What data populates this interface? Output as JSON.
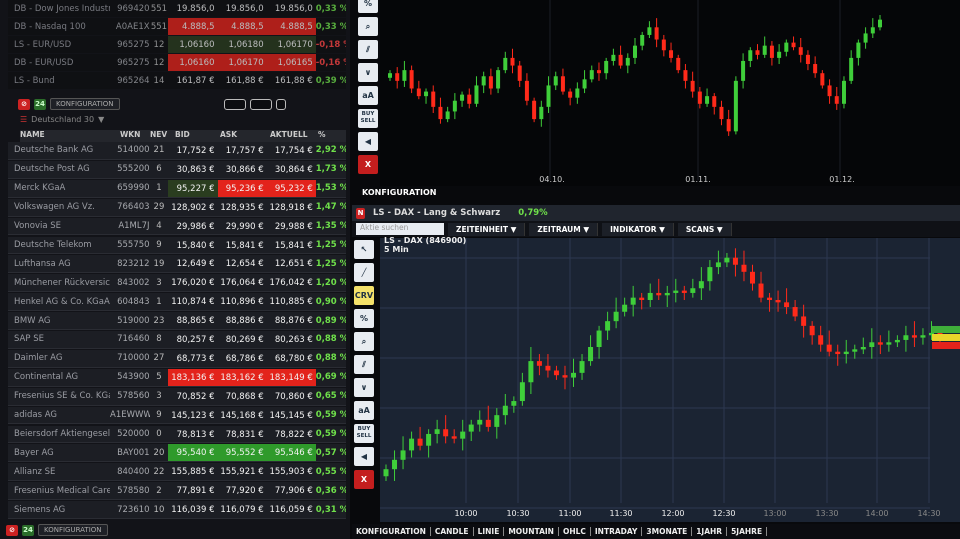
{
  "indices_table": {
    "rows": [
      {
        "name": "DB - Dow Jones Industria",
        "wkn": "969420",
        "nev": "551",
        "bid": "19.856,0",
        "ask": "19.856,0",
        "akt": "19.856,0",
        "pct": "0,33 %",
        "hl": ""
      },
      {
        "name": "DB - Nasdaq 100",
        "wkn": "A0AE1X",
        "nev": "551",
        "bid": "4.888,5",
        "ask": "4.888,5",
        "akt": "4.888,5",
        "pct": "0,33 %",
        "hl": "red"
      },
      {
        "name": "LS - EUR/USD",
        "wkn": "965275",
        "nev": "12",
        "bid": "1,06160",
        "ask": "1,06180",
        "akt": "1,06170",
        "pct": "-0,18 %",
        "hl": "dgreen"
      },
      {
        "name": "DB - EUR/USD",
        "wkn": "965275",
        "nev": "12",
        "bid": "1,06160",
        "ask": "1,06170",
        "akt": "1,06165",
        "pct": "-0,16 %",
        "hl": "red"
      },
      {
        "name": "LS - Bund",
        "wkn": "965264",
        "nev": "14",
        "bid": "161,87 €",
        "ask": "161,88 €",
        "akt": "161,88 €",
        "pct": "0,39 %",
        "hl": ""
      }
    ]
  },
  "panel": {
    "tab_count": "24",
    "tab_label": "KONFIGURATION",
    "list_title": "Deutschland 30"
  },
  "columns": {
    "name": "NAME",
    "wkn": "WKN",
    "nev": "NEV",
    "bid": "BID",
    "ask": "ASK",
    "akt": "AKTUELL",
    "pct": "%"
  },
  "dax_table": {
    "rows": [
      {
        "name": "Deutsche Bank AG",
        "wkn": "514000",
        "nev": "21",
        "bid": "17,752 €",
        "ask": "17,757 €",
        "akt": "17,754 €",
        "pct": "2,92 %",
        "hl": ""
      },
      {
        "name": "Deutsche Post AG",
        "wkn": "555200",
        "nev": "6",
        "bid": "30,863 €",
        "ask": "30,866 €",
        "akt": "30,864 €",
        "pct": "1,73 %",
        "hl": ""
      },
      {
        "name": "Merck KGaA",
        "wkn": "659990",
        "nev": "1",
        "bid": "95,227 €",
        "ask": "95,236 €",
        "akt": "95,232 €",
        "pct": "1,53 %",
        "hl": "merck"
      },
      {
        "name": "Volkswagen AG Vz.",
        "wkn": "766403",
        "nev": "29",
        "bid": "128,902 €",
        "ask": "128,935 €",
        "akt": "128,918 €",
        "pct": "1,47 %",
        "hl": ""
      },
      {
        "name": "Vonovia SE",
        "wkn": "A1ML7J",
        "nev": "4",
        "bid": "29,986 €",
        "ask": "29,990 €",
        "akt": "29,988 €",
        "pct": "1,35 %",
        "hl": ""
      },
      {
        "name": "Deutsche Telekom",
        "wkn": "555750",
        "nev": "9",
        "bid": "15,840 €",
        "ask": "15,841 €",
        "akt": "15,841 €",
        "pct": "1,25 %",
        "hl": ""
      },
      {
        "name": "Lufthansa AG",
        "wkn": "823212",
        "nev": "19",
        "bid": "12,649 €",
        "ask": "12,654 €",
        "akt": "12,651 €",
        "pct": "1,25 %",
        "hl": ""
      },
      {
        "name": "Münchener Rückversiche",
        "wkn": "843002",
        "nev": "3",
        "bid": "176,020 €",
        "ask": "176,064 €",
        "akt": "176,042 €",
        "pct": "1,20 %",
        "hl": ""
      },
      {
        "name": "Henkel AG & Co. KGaA V.",
        "wkn": "604843",
        "nev": "1",
        "bid": "110,874 €",
        "ask": "110,896 €",
        "akt": "110,885 €",
        "pct": "0,90 %",
        "hl": ""
      },
      {
        "name": "BMW AG",
        "wkn": "519000",
        "nev": "23",
        "bid": "88,865 €",
        "ask": "88,886 €",
        "akt": "88,876 €",
        "pct": "0,89 %",
        "hl": ""
      },
      {
        "name": "SAP SE",
        "wkn": "716460",
        "nev": "8",
        "bid": "80,257 €",
        "ask": "80,269 €",
        "akt": "80,263 €",
        "pct": "0,88 %",
        "hl": ""
      },
      {
        "name": "Daimler AG",
        "wkn": "710000",
        "nev": "27",
        "bid": "68,773 €",
        "ask": "68,786 €",
        "akt": "68,780 €",
        "pct": "0,88 %",
        "hl": ""
      },
      {
        "name": "Continental AG",
        "wkn": "543900",
        "nev": "5",
        "bid": "183,136 €",
        "ask": "183,162 €",
        "akt": "183,149 €",
        "pct": "0,69 %",
        "hl": "red"
      },
      {
        "name": "Fresenius SE & Co. KGaA",
        "wkn": "578560",
        "nev": "3",
        "bid": "70,852 €",
        "ask": "70,868 €",
        "akt": "70,860 €",
        "pct": "0,65 %",
        "hl": ""
      },
      {
        "name": "adidas AG",
        "wkn": "A1EWWW",
        "nev": "9",
        "bid": "145,123 €",
        "ask": "145,168 €",
        "akt": "145,145 €",
        "pct": "0,59 %",
        "hl": ""
      },
      {
        "name": "Beiersdorf Aktiengesellsc",
        "wkn": "520000",
        "nev": "0",
        "bid": "78,813 €",
        "ask": "78,831 €",
        "akt": "78,822 €",
        "pct": "0,59 %",
        "hl": ""
      },
      {
        "name": "Bayer AG",
        "wkn": "BAY001",
        "nev": "20",
        "bid": "95,540 €",
        "ask": "95,552 €",
        "akt": "95,546 €",
        "pct": "0,57 %",
        "hl": "green"
      },
      {
        "name": "Allianz SE",
        "wkn": "840400",
        "nev": "22",
        "bid": "155,885 €",
        "ask": "155,921 €",
        "akt": "155,903 €",
        "pct": "0,55 %",
        "hl": ""
      },
      {
        "name": "Fresenius Medical Care A",
        "wkn": "578580",
        "nev": "2",
        "bid": "77,891 €",
        "ask": "77,920 €",
        "akt": "77,906 €",
        "pct": "0,36 %",
        "hl": ""
      },
      {
        "name": "Siemens AG",
        "wkn": "723610",
        "nev": "10",
        "bid": "116,039 €",
        "ask": "116,079 €",
        "akt": "116,059 €",
        "pct": "0,31 %",
        "hl": ""
      }
    ]
  },
  "upper_chart": {
    "konfiguration": "KONFIGURATION",
    "x_labels": [
      "04.10.",
      "01.11.",
      "01.12."
    ]
  },
  "lower_window": {
    "title": "LS - DAX - Lang & Schwarz",
    "change": "0,79%",
    "search_placeholder": "Aktie suchen",
    "dropdowns": [
      "ZEITEINHEIT",
      "ZEITRAUM",
      "INDIKATOR",
      "SCANS"
    ],
    "instrument": "LS - DAX (846900)",
    "interval": "5 Min",
    "bottom_tabs": [
      "KONFIGURATION",
      "CANDLE",
      "LINIE",
      "MOUNTAIN",
      "OHLC",
      "INTRADAY",
      "3MONATE",
      "1JAHR",
      "5JAHRE"
    ]
  },
  "tools": [
    "cursor-icon",
    "line-icon",
    "crv",
    "percent-icon",
    "zoom-icon",
    "parallel-icon",
    "wave-icon",
    "aA",
    "BUY SELL",
    "sound-icon",
    "X"
  ],
  "colors": {
    "up": "#3fce3a",
    "down": "#ff2a1a",
    "bid_red": "#e3231b",
    "bid_green": "#2f9a2b",
    "pct_green": "#6fe04a"
  },
  "chart_data": [
    {
      "type": "candlestick",
      "x_labels": [
        "04.10.",
        "01.11.",
        "01.12."
      ],
      "closes": [
        60,
        55,
        62,
        50,
        45,
        48,
        38,
        30,
        35,
        42,
        46,
        40,
        52,
        58,
        50,
        62,
        70,
        65,
        55,
        42,
        30,
        38,
        52,
        58,
        48,
        44,
        50,
        56,
        62,
        60,
        68,
        72,
        65,
        70,
        78,
        85,
        90,
        82,
        75,
        70,
        62,
        55,
        48,
        40,
        45,
        38,
        30,
        22,
        55,
        68,
        75,
        72,
        78,
        70,
        74,
        80,
        77,
        72,
        66,
        60,
        52,
        45,
        40,
        55,
        70,
        80,
        86,
        90,
        95
      ]
    },
    {
      "type": "candlestick",
      "title": "LS - DAX (846900)",
      "subtitle": "5 Min",
      "x_labels": [
        "10:00",
        "10:30",
        "11:00",
        "11:30",
        "12:00",
        "12:30",
        "13:00",
        "13:30",
        "14:00",
        "14:30"
      ],
      "closes": [
        8,
        12,
        16,
        21,
        18,
        23,
        25,
        22,
        21,
        24,
        27,
        29,
        26,
        31,
        35,
        37,
        45,
        54,
        52,
        50,
        48,
        47,
        49,
        54,
        60,
        67,
        71,
        75,
        78,
        81,
        80,
        83,
        82,
        83,
        84,
        83,
        85,
        88,
        94,
        96,
        98,
        95,
        92,
        87,
        81,
        80,
        79,
        77,
        73,
        69,
        65,
        61,
        58,
        57,
        58,
        59,
        60,
        62,
        61,
        62,
        63,
        65,
        64,
        65,
        66,
        65
      ]
    }
  ]
}
